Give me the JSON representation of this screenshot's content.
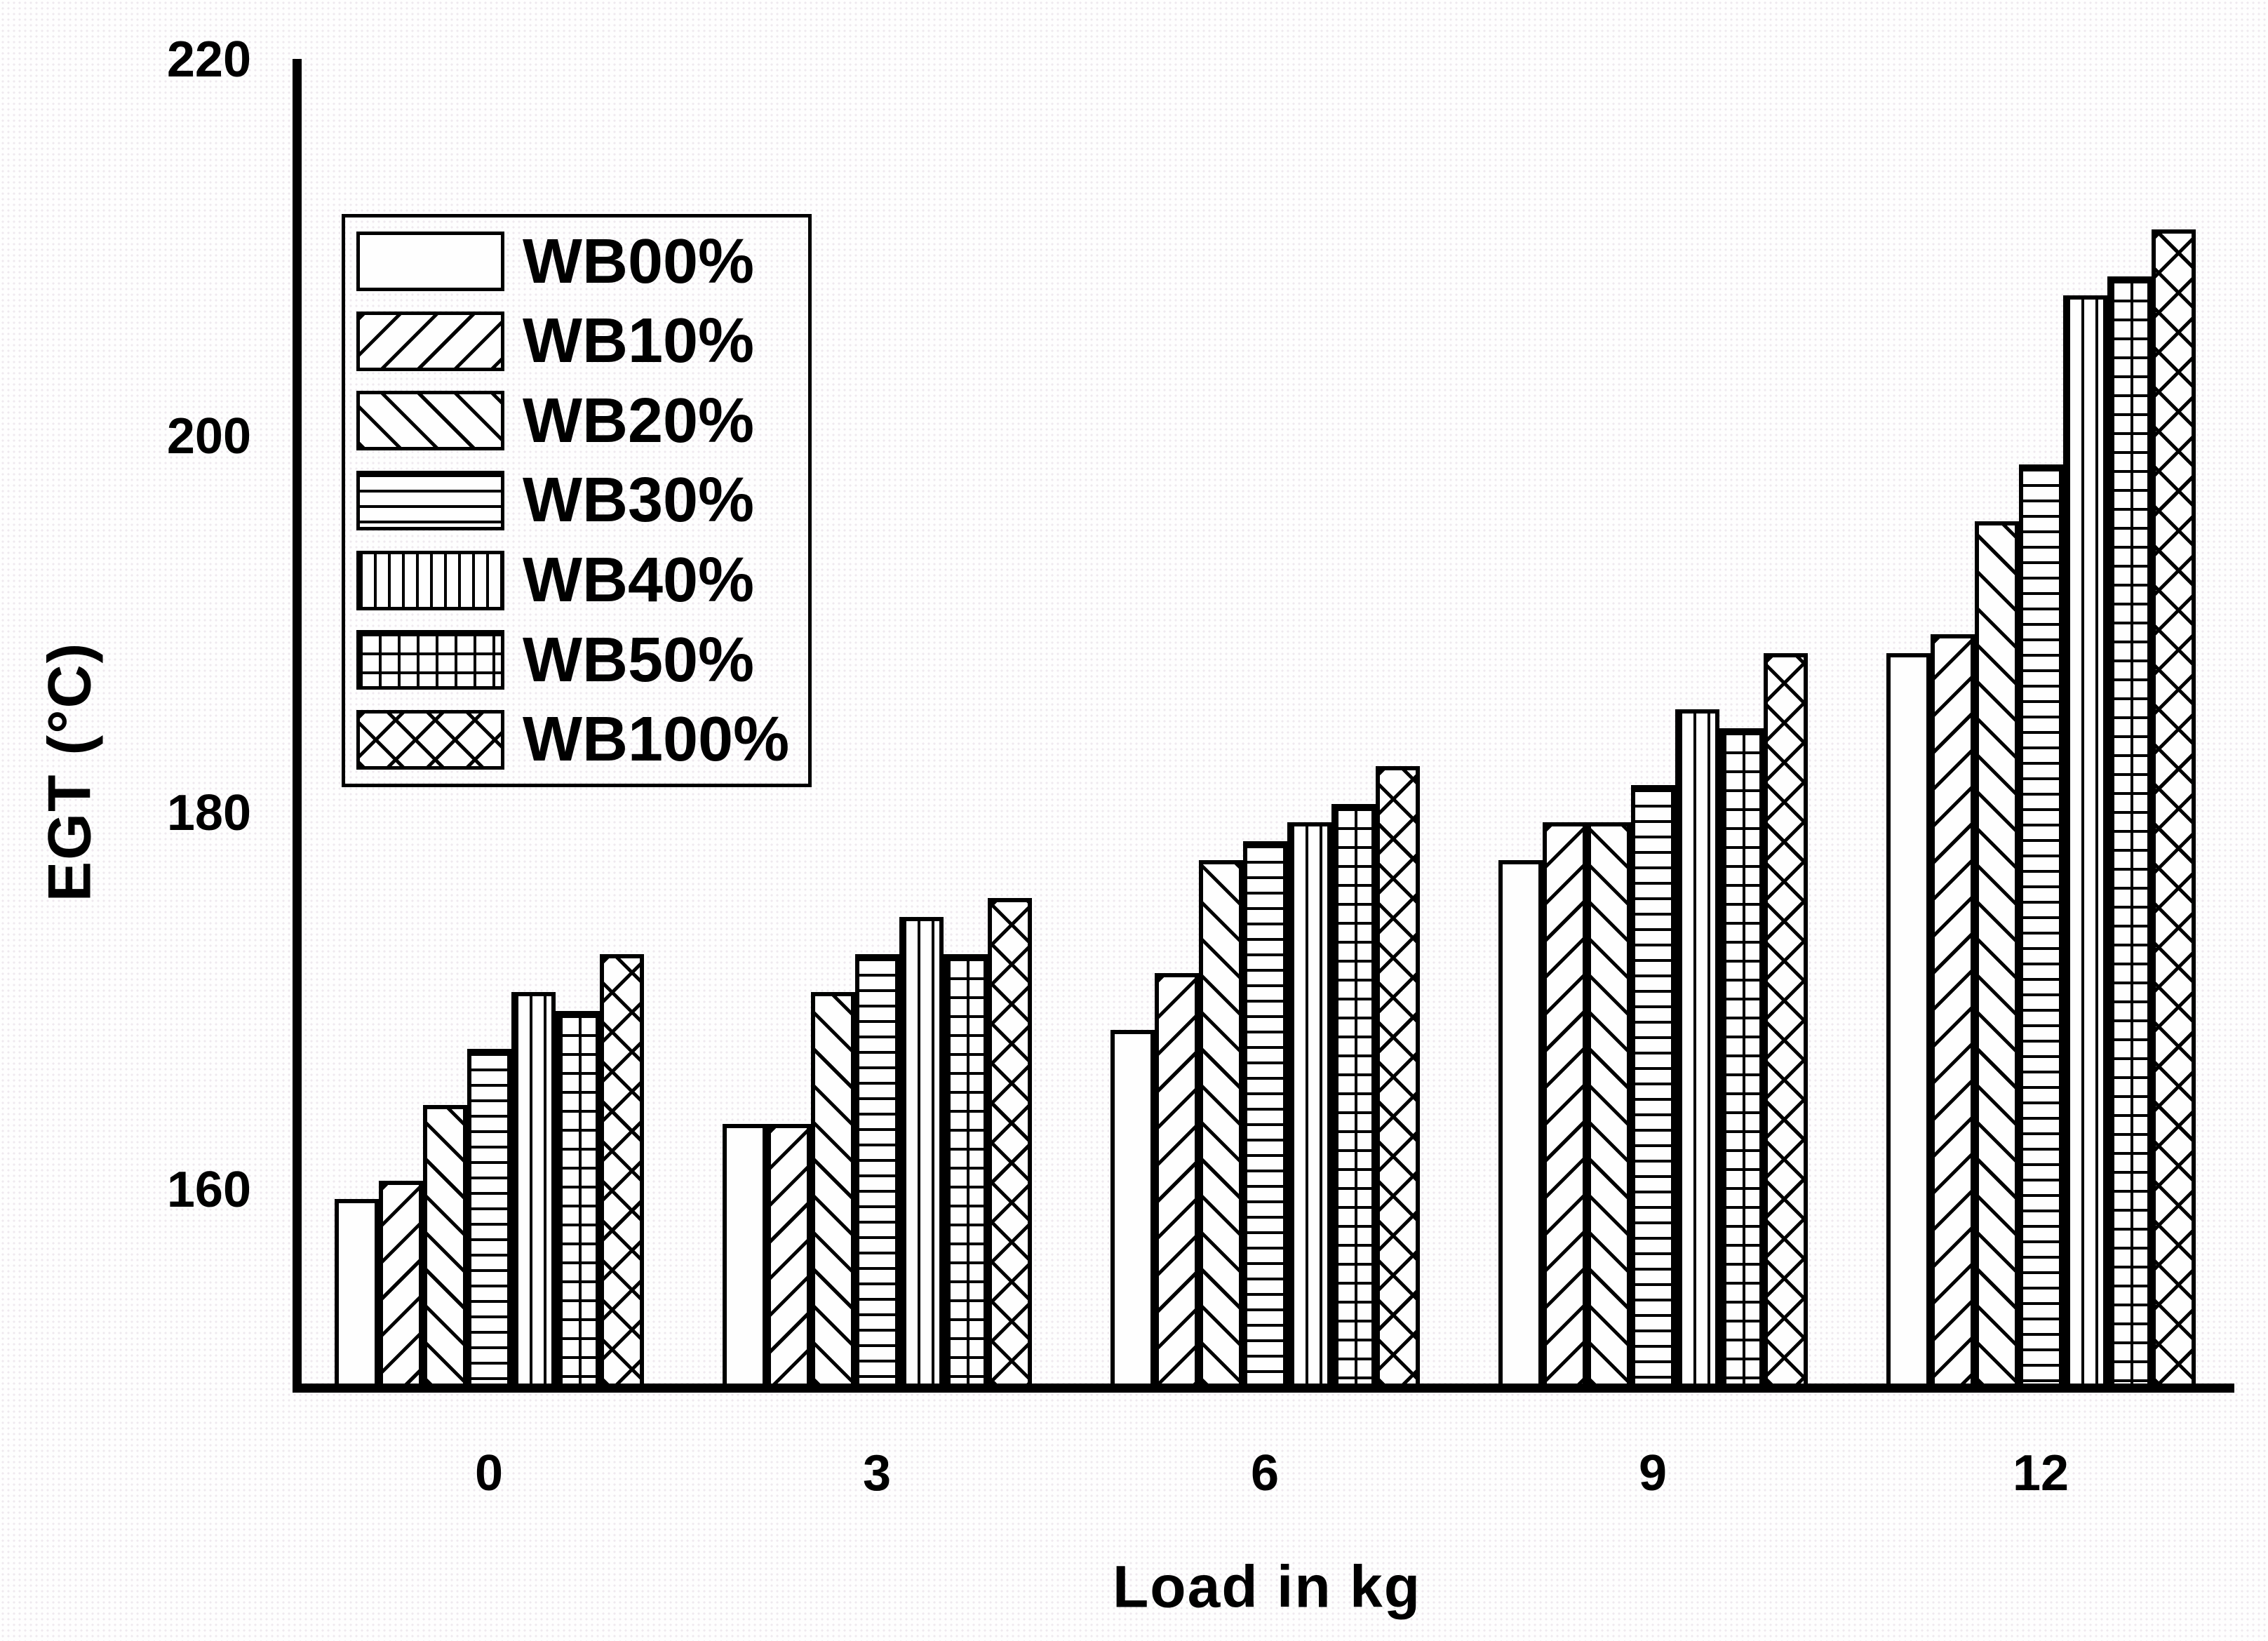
{
  "chart_data": {
    "type": "bar",
    "title": "",
    "xlabel": "Load in kg",
    "ylabel": "EGT (°C)",
    "categories": [
      "0",
      "3",
      "6",
      "9",
      "12"
    ],
    "series": [
      {
        "name": "WB00%",
        "pattern": "plain",
        "values": [
          159.5,
          163.5,
          168.5,
          177.5,
          188.5
        ]
      },
      {
        "name": "WB10%",
        "pattern": "diag-up",
        "values": [
          160.5,
          163.5,
          171.5,
          179.5,
          189.5
        ]
      },
      {
        "name": "WB20%",
        "pattern": "diag-down",
        "values": [
          164.5,
          170.5,
          177.5,
          179.5,
          195.5
        ]
      },
      {
        "name": "WB30%",
        "pattern": "horiz",
        "values": [
          167.5,
          172.5,
          178.5,
          181.5,
          198.5
        ]
      },
      {
        "name": "WB40%",
        "pattern": "vert",
        "values": [
          170.5,
          174.5,
          179.5,
          185.5,
          207.5
        ]
      },
      {
        "name": "WB50%",
        "pattern": "grid",
        "values": [
          169.5,
          172.5,
          180.5,
          184.5,
          208.5
        ]
      },
      {
        "name": "WB100%",
        "pattern": "cross",
        "values": [
          172.5,
          175.5,
          182.5,
          188.5,
          211.0
        ]
      }
    ],
    "yticks": [
      220,
      200,
      180,
      160
    ],
    "ytick_labels": [
      "220",
      "200",
      "180",
      "160"
    ],
    "ylim": [
      149.5,
      220.6
    ],
    "grid": false,
    "legend_position": "upper-left",
    "bar_fill": "#ffffff",
    "bar_stroke": "#000000",
    "background": "#fefefe"
  }
}
